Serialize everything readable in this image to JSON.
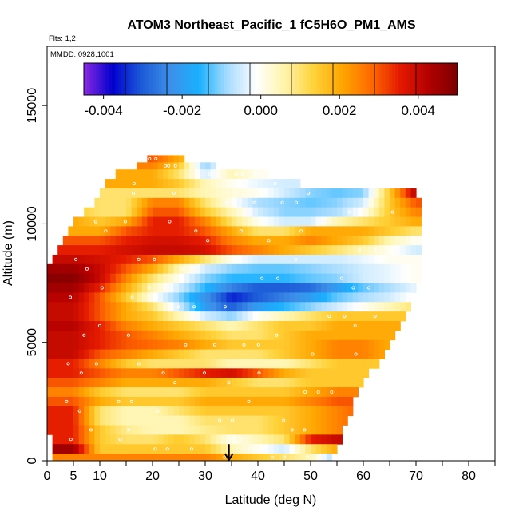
{
  "chart_data": {
    "type": "heatmap",
    "title": "ATOM3 Northeast_Pacific_1 fC5H6O_PM1_AMS",
    "annotations": {
      "flights": "Flts: 1,2",
      "dates": "MMDD: 0928,1001"
    },
    "xlabel": "Latitude (deg N)",
    "ylabel": "Altitude (m)",
    "xlim": [
      0,
      85
    ],
    "ylim": [
      0,
      17500
    ],
    "x_ticks": [
      0,
      5,
      10,
      20,
      30,
      40,
      50,
      60,
      70,
      80
    ],
    "x_tick_labels": [
      "0",
      "5",
      "10",
      "20",
      "30",
      "40",
      "50",
      "60",
      "70",
      "80"
    ],
    "y_ticks": [
      0,
      5000,
      10000,
      15000
    ],
    "y_tick_labels": [
      "0",
      "5000",
      "10000",
      "15000"
    ],
    "colorbar": {
      "min": -0.0045,
      "max": 0.005,
      "ticks": [
        -0.004,
        -0.002,
        0.0,
        0.002,
        0.004
      ],
      "tick_labels": [
        "-0.004",
        "-0.002",
        "0.000",
        "0.002",
        "0.004"
      ],
      "colors": [
        "#8a2be2",
        "#0000cd",
        "#1c5bd8",
        "#3d8fe8",
        "#1ab0ff",
        "#a8dcff",
        "#ffffff",
        "#fff4a8",
        "#ffd23a",
        "#ffa500",
        "#ff6a00",
        "#e41a00",
        "#b30000",
        "#7a0000"
      ]
    },
    "arrow_marker": {
      "latitude": 34.5,
      "altitude": 700
    },
    "altitude_bands_m": [
      [
        12600,
        12900
      ],
      [
        12300,
        12600
      ],
      [
        11900,
        12300
      ],
      [
        11500,
        11900
      ],
      [
        11100,
        11500
      ],
      [
        10700,
        11100
      ],
      [
        10300,
        10700
      ],
      [
        9900,
        10300
      ],
      [
        9500,
        9900
      ],
      [
        9100,
        9500
      ],
      [
        8700,
        9100
      ],
      [
        8300,
        8700
      ],
      [
        7900,
        8300
      ],
      [
        7500,
        7900
      ],
      [
        7100,
        7500
      ],
      [
        6700,
        7100
      ],
      [
        6300,
        6700
      ],
      [
        5900,
        6300
      ],
      [
        5500,
        5900
      ],
      [
        5100,
        5500
      ],
      [
        4700,
        5100
      ],
      [
        4300,
        4700
      ],
      [
        3900,
        4300
      ],
      [
        3500,
        3900
      ],
      [
        3100,
        3500
      ],
      [
        2700,
        3100
      ],
      [
        2300,
        2700
      ],
      [
        1900,
        2300
      ],
      [
        1500,
        1900
      ],
      [
        1100,
        1500
      ],
      [
        700,
        1100
      ],
      [
        300,
        700
      ],
      [
        0,
        300
      ]
    ],
    "band_latitude_extent": [
      [
        19,
        26
      ],
      [
        17,
        32
      ],
      [
        13,
        42
      ],
      [
        11,
        48
      ],
      [
        10,
        70
      ],
      [
        9,
        71
      ],
      [
        7,
        71
      ],
      [
        5,
        71
      ],
      [
        4,
        71
      ],
      [
        3,
        71
      ],
      [
        2,
        71
      ],
      [
        1,
        71
      ],
      [
        0,
        71
      ],
      [
        0,
        71
      ],
      [
        0,
        70
      ],
      [
        0,
        69
      ],
      [
        0,
        69
      ],
      [
        0,
        68
      ],
      [
        0,
        67
      ],
      [
        0,
        66
      ],
      [
        0,
        65
      ],
      [
        0,
        64
      ],
      [
        0,
        63
      ],
      [
        0,
        61
      ],
      [
        0,
        60
      ],
      [
        0,
        59
      ],
      [
        0,
        58
      ],
      [
        0,
        58
      ],
      [
        0,
        57
      ],
      [
        0,
        56
      ],
      [
        1,
        56
      ],
      [
        1,
        55
      ],
      [
        1,
        54
      ]
    ],
    "profile_nodes_deg_n": [
      0,
      5,
      10,
      15,
      20,
      25,
      30,
      35,
      40,
      45,
      50,
      55,
      60,
      65,
      70
    ],
    "values": [
      [
        0.003,
        0.003,
        0.003,
        0.003,
        0.003,
        0.002,
        0.001,
        0.0005,
        0.0005,
        0.0005,
        0.0005,
        0.0005,
        0.0005,
        0.0005,
        0.0005
      ],
      [
        0.0025,
        0.0025,
        0.0025,
        0.0025,
        0.0025,
        0.0015,
        -0.001,
        0.0005,
        0.0005,
        0.0005,
        0.0005,
        0.0005,
        0.0005,
        0.0005,
        0.0005
      ],
      [
        0.002,
        0.002,
        0.002,
        0.002,
        0.002,
        0.001,
        -0.0005,
        0.0005,
        0.0,
        0.0,
        0.0035,
        0.0035,
        0.0035,
        0.0035,
        0.0035
      ],
      [
        0.002,
        0.002,
        0.002,
        0.002,
        0.002,
        0.0015,
        0.0005,
        0.0,
        -0.0003,
        -0.0005,
        -0.0005,
        0.0,
        0.0005,
        0.0005,
        0.0005
      ],
      [
        0.001,
        0.001,
        0.001,
        0.001,
        0.001,
        0.001,
        0.0005,
        0.0002,
        0.0,
        -0.0005,
        -0.001,
        -0.0012,
        -0.001,
        0.0015,
        0.0042
      ],
      [
        0.0015,
        0.0015,
        0.001,
        0.001,
        0.0025,
        0.0025,
        0.001,
        0.0,
        -0.0008,
        -0.001,
        -0.0012,
        -0.001,
        -0.0005,
        0.0015,
        0.003
      ],
      [
        0.0015,
        0.0015,
        0.001,
        0.001,
        0.003,
        0.003,
        0.0015,
        0.0005,
        -0.0005,
        -0.001,
        -0.001,
        -0.0008,
        0.0,
        0.0015,
        0.0025
      ],
      [
        0.002,
        0.002,
        0.0015,
        0.002,
        0.0035,
        0.0035,
        0.0025,
        0.001,
        0.0,
        -0.0005,
        -0.0005,
        0.0005,
        0.001,
        0.0015,
        0.002
      ],
      [
        0.002,
        0.002,
        0.002,
        0.003,
        0.0035,
        0.0035,
        0.003,
        0.002,
        0.001,
        0.001,
        0.002,
        0.002,
        0.002,
        0.0015,
        0.001
      ],
      [
        0.003,
        0.003,
        0.003,
        0.0035,
        0.0038,
        0.0038,
        0.0035,
        0.0025,
        0.002,
        0.002,
        0.0025,
        0.002,
        0.0015,
        0.0005,
        0.0
      ],
      [
        0.0035,
        0.0035,
        0.0035,
        0.0038,
        0.004,
        0.004,
        0.0038,
        0.003,
        0.0025,
        0.002,
        0.0015,
        0.001,
        0.0005,
        0.0,
        -0.0005
      ],
      [
        0.004,
        0.004,
        0.0038,
        0.0035,
        0.003,
        0.002,
        0.001,
        0.0,
        -0.0005,
        -0.0005,
        -0.0005,
        -0.0005,
        -0.0003,
        0.0,
        0.0
      ],
      [
        0.0045,
        0.0045,
        0.004,
        0.003,
        0.002,
        0.0005,
        -0.0005,
        -0.001,
        -0.0012,
        -0.0012,
        -0.001,
        -0.0008,
        -0.0005,
        -0.0003,
        0.0
      ],
      [
        0.0048,
        0.0048,
        0.004,
        0.0025,
        0.001,
        0.0,
        -0.001,
        -0.0015,
        -0.0015,
        -0.0015,
        -0.0012,
        -0.001,
        -0.0005,
        -0.0003,
        0.0
      ],
      [
        0.0045,
        0.0045,
        0.0035,
        0.002,
        0.0005,
        -0.0005,
        -0.0015,
        -0.0025,
        -0.003,
        -0.003,
        -0.0028,
        -0.002,
        -0.0012,
        -0.0008,
        -0.0003
      ],
      [
        0.0042,
        0.0042,
        0.003,
        0.0015,
        0.0,
        -0.001,
        -0.0022,
        -0.0035,
        -0.003,
        -0.0025,
        -0.002,
        -0.0012,
        -0.0008,
        -0.0005,
        0.0
      ],
      [
        0.004,
        0.004,
        0.003,
        0.002,
        0.001,
        -0.0005,
        -0.002,
        -0.003,
        -0.002,
        -0.0015,
        -0.001,
        -0.0005,
        0.0,
        0.0005,
        0.001
      ],
      [
        0.004,
        0.004,
        0.003,
        0.002,
        0.0015,
        0.0005,
        -0.0005,
        -0.001,
        0.0,
        0.0005,
        0.001,
        0.0015,
        0.0015,
        0.0015,
        0.0015
      ],
      [
        0.0042,
        0.0042,
        0.0035,
        0.0025,
        0.002,
        0.0015,
        0.001,
        0.0005,
        0.001,
        0.0015,
        0.0015,
        0.002,
        0.002,
        0.002,
        0.002
      ],
      [
        0.004,
        0.004,
        0.0035,
        0.003,
        0.0025,
        0.002,
        0.0015,
        0.001,
        0.001,
        0.0015,
        0.002,
        0.002,
        0.002,
        0.002,
        0.002
      ],
      [
        0.004,
        0.004,
        0.0035,
        0.003,
        0.0028,
        0.0025,
        0.002,
        0.0015,
        0.0015,
        0.0015,
        0.002,
        0.0025,
        0.0025,
        0.002,
        0.002
      ],
      [
        0.004,
        0.004,
        0.003,
        0.0025,
        0.002,
        0.0015,
        0.001,
        0.001,
        0.001,
        0.0015,
        0.002,
        0.0025,
        0.0025,
        0.002,
        0.002
      ],
      [
        0.0035,
        0.0035,
        0.0025,
        0.0015,
        0.001,
        0.001,
        0.001,
        0.0005,
        0.0005,
        0.0005,
        0.001,
        0.0015,
        0.0015,
        0.0015,
        0.0015
      ],
      [
        0.0035,
        0.0035,
        0.003,
        0.0025,
        0.0025,
        0.003,
        0.0035,
        0.0038,
        0.003,
        0.002,
        0.0015,
        0.0015,
        0.0015,
        0.0015,
        0.0015
      ],
      [
        0.003,
        0.003,
        0.0025,
        0.002,
        0.002,
        0.002,
        0.002,
        0.0015,
        0.001,
        0.001,
        0.0015,
        0.0015,
        0.0015,
        0.0015,
        0.0015
      ],
      [
        0.0025,
        0.0025,
        0.0015,
        0.001,
        0.001,
        0.001,
        0.0015,
        0.0015,
        0.0015,
        0.0015,
        0.002,
        0.0025,
        0.0025,
        0.0025,
        0.0025
      ],
      [
        0.003,
        0.003,
        0.002,
        0.0015,
        0.0015,
        0.0015,
        0.002,
        0.002,
        0.002,
        0.002,
        0.0025,
        0.003,
        0.003,
        0.003,
        0.003
      ],
      [
        0.0035,
        0.0035,
        0.001,
        0.0005,
        0.0005,
        0.001,
        0.0015,
        0.0015,
        0.0015,
        0.0015,
        0.002,
        0.0025,
        0.003,
        0.003,
        0.003
      ],
      [
        0.0035,
        0.0035,
        0.001,
        0.0005,
        0.0005,
        0.0005,
        0.001,
        0.001,
        0.001,
        0.0015,
        0.002,
        0.0025,
        0.003,
        0.003,
        0.003
      ],
      [
        0.0035,
        0.0035,
        0.0015,
        0.0008,
        0.0005,
        0.0005,
        0.0008,
        0.001,
        0.001,
        0.0015,
        0.002,
        0.0025,
        0.003,
        0.003,
        0.003
      ],
      [
        0.0035,
        0.0035,
        0.0015,
        0.001,
        0.001,
        0.0015,
        0.001,
        0.0,
        0.0005,
        0.001,
        0.0035,
        0.004,
        0.004,
        0.004,
        0.004
      ],
      [
        0.0045,
        0.0045,
        0.0015,
        0.0015,
        0.0015,
        0.0015,
        0.0015,
        0.0005,
        0.0,
        -0.0005,
        0.001,
        0.002,
        0.002,
        0.002,
        0.002
      ],
      [
        0.0025,
        0.0025,
        0.0025,
        0.0025,
        0.0025,
        0.0025,
        0.0025,
        0.002,
        0.0015,
        0.001,
        0.0005,
        -0.001,
        -0.001,
        -0.001,
        -0.001
      ]
    ]
  }
}
